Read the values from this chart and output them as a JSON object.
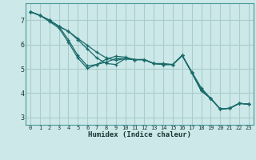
{
  "xlabel": "Humidex (Indice chaleur)",
  "bg_color": "#cce8e8",
  "line_color": "#1a6b6b",
  "grid_major_color": "#aacccc",
  "grid_minor_color": "#c0dddd",
  "xlim": [
    -0.5,
    23.5
  ],
  "ylim": [
    2.7,
    7.7
  ],
  "xticks": [
    0,
    1,
    2,
    3,
    4,
    5,
    6,
    7,
    8,
    9,
    10,
    11,
    12,
    13,
    14,
    15,
    16,
    17,
    18,
    19,
    20,
    21,
    22,
    23
  ],
  "yticks": [
    3,
    4,
    5,
    6,
    7
  ],
  "lines": [
    {
      "x": [
        0,
        1,
        2,
        3,
        4,
        5,
        6,
        7,
        8,
        9,
        10,
        11,
        12,
        13,
        14,
        15,
        16,
        17,
        18,
        19,
        20,
        21,
        22,
        23
      ],
      "y": [
        7.35,
        7.2,
        7.0,
        6.75,
        6.55,
        6.25,
        5.97,
        5.68,
        5.45,
        5.35,
        5.42,
        5.38,
        5.38,
        5.22,
        5.22,
        5.18,
        5.55,
        4.88,
        4.22,
        3.78,
        3.35,
        3.38,
        3.58,
        3.55
      ]
    },
    {
      "x": [
        0,
        1,
        2,
        3,
        4,
        5,
        6,
        7,
        8,
        9,
        10,
        11,
        12,
        13,
        14,
        15,
        16,
        17,
        18,
        19,
        20,
        21,
        22,
        23
      ],
      "y": [
        7.35,
        7.2,
        7.0,
        6.75,
        6.55,
        6.2,
        5.82,
        5.45,
        5.22,
        5.18,
        5.42,
        5.38,
        5.38,
        5.22,
        5.18,
        5.18,
        5.55,
        4.85,
        4.1,
        3.78,
        3.35,
        3.38,
        3.58,
        3.55
      ]
    },
    {
      "x": [
        0,
        1,
        2,
        3,
        4,
        5,
        6,
        7,
        8,
        9,
        10,
        11,
        12,
        13,
        14,
        15,
        16,
        17,
        18,
        19,
        20,
        21,
        22,
        23
      ],
      "y": [
        7.35,
        7.2,
        7.0,
        6.75,
        6.2,
        5.55,
        5.12,
        5.18,
        5.28,
        5.42,
        5.42,
        5.38,
        5.38,
        5.22,
        5.18,
        5.18,
        5.55,
        4.85,
        4.15,
        3.78,
        3.35,
        3.38,
        3.58,
        3.55
      ]
    },
    {
      "x": [
        0,
        1,
        2,
        3,
        4,
        5,
        6,
        7,
        8,
        9,
        10,
        11,
        12,
        13,
        14,
        15,
        16,
        17,
        18,
        19,
        20,
        21,
        22,
        23
      ],
      "y": [
        7.35,
        7.2,
        6.95,
        6.68,
        6.1,
        5.45,
        5.02,
        5.18,
        5.4,
        5.52,
        5.48,
        5.38,
        5.38,
        5.22,
        5.18,
        5.18,
        5.55,
        4.85,
        4.1,
        3.78,
        3.35,
        3.38,
        3.58,
        3.55
      ]
    }
  ]
}
